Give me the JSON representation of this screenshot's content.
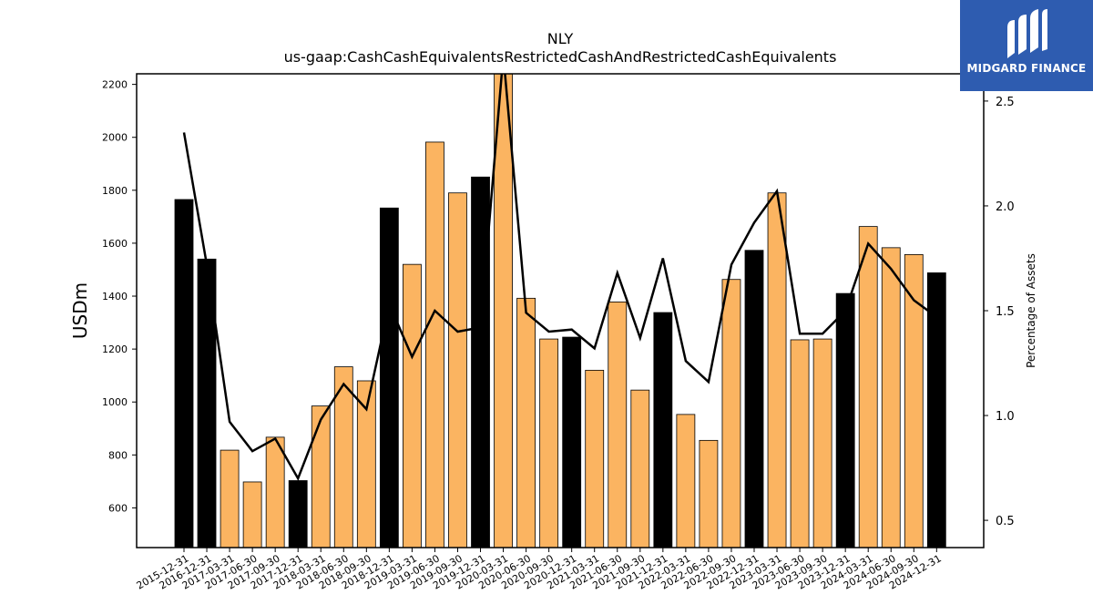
{
  "chart_data": {
    "type": "bar",
    "title": "NLY",
    "subtitle": "us-gaap:CashCashEquivalentsRestrictedCashAndRestrictedCashEquivalents",
    "ylabel": "USDm",
    "y2label": "Percentage of Assets",
    "ylim": [
      450,
      2240
    ],
    "y2lim": [
      0.37,
      2.63
    ],
    "yticks": [
      600,
      800,
      1000,
      1200,
      1400,
      1600,
      1800,
      2000,
      2200
    ],
    "y2ticks": [
      0.5,
      1.0,
      1.5,
      2.0,
      2.5
    ],
    "y2tick_labels": [
      "0.5",
      "1.0",
      "1.5",
      "2.0",
      "2.5"
    ],
    "categories": [
      "2015-12-31",
      "2016-12-31",
      "2017-03-31",
      "2017-06-30",
      "2017-09-30",
      "2017-12-31",
      "2018-03-31",
      "2018-06-30",
      "2018-09-30",
      "2018-12-31",
      "2019-03-31",
      "2019-06-30",
      "2019-09-30",
      "2019-12-31",
      "2020-03-31",
      "2020-06-30",
      "2020-09-30",
      "2020-12-31",
      "2021-03-31",
      "2021-06-30",
      "2021-09-30",
      "2021-12-31",
      "2022-03-31",
      "2022-06-30",
      "2022-09-30",
      "2022-12-31",
      "2023-03-31",
      "2023-06-30",
      "2023-09-30",
      "2023-12-31",
      "2024-03-31",
      "2024-06-30",
      "2024-09-30",
      "2024-12-31"
    ],
    "series": [
      {
        "values": [
          1765,
          1540,
          818,
          698,
          867,
          703,
          985,
          1133,
          1080,
          1733,
          1520,
          1982,
          1790,
          1850,
          2245,
          1392,
          1238,
          1245,
          1120,
          1378,
          1045,
          1338,
          953,
          855,
          1463,
          1573,
          1790,
          1235,
          1238,
          1410,
          1663,
          1583,
          1557,
          1488
        ],
        "annual_flags": [
          true,
          true,
          false,
          false,
          false,
          true,
          false,
          false,
          false,
          true,
          false,
          false,
          false,
          true,
          false,
          false,
          false,
          true,
          false,
          false,
          false,
          true,
          false,
          false,
          false,
          true,
          false,
          false,
          false,
          true,
          false,
          false,
          false,
          true
        ]
      },
      {
        "axis": "right",
        "values": [
          2.35,
          1.72,
          0.97,
          0.83,
          0.89,
          0.7,
          0.98,
          1.15,
          1.03,
          1.53,
          1.28,
          1.5,
          1.4,
          1.42,
          2.72,
          1.49,
          1.4,
          1.41,
          1.32,
          1.68,
          1.37,
          1.75,
          1.26,
          1.16,
          1.72,
          1.92,
          2.07,
          1.39,
          1.39,
          1.5,
          1.82,
          1.7,
          1.55,
          1.47
        ]
      }
    ],
    "colors": {
      "annual_bar": "#000000",
      "quarter_bar": "#fbb461",
      "line": "#000000"
    }
  },
  "logo": {
    "text": "MIDGARD FINANCE",
    "bg": "#2e5cb0"
  }
}
